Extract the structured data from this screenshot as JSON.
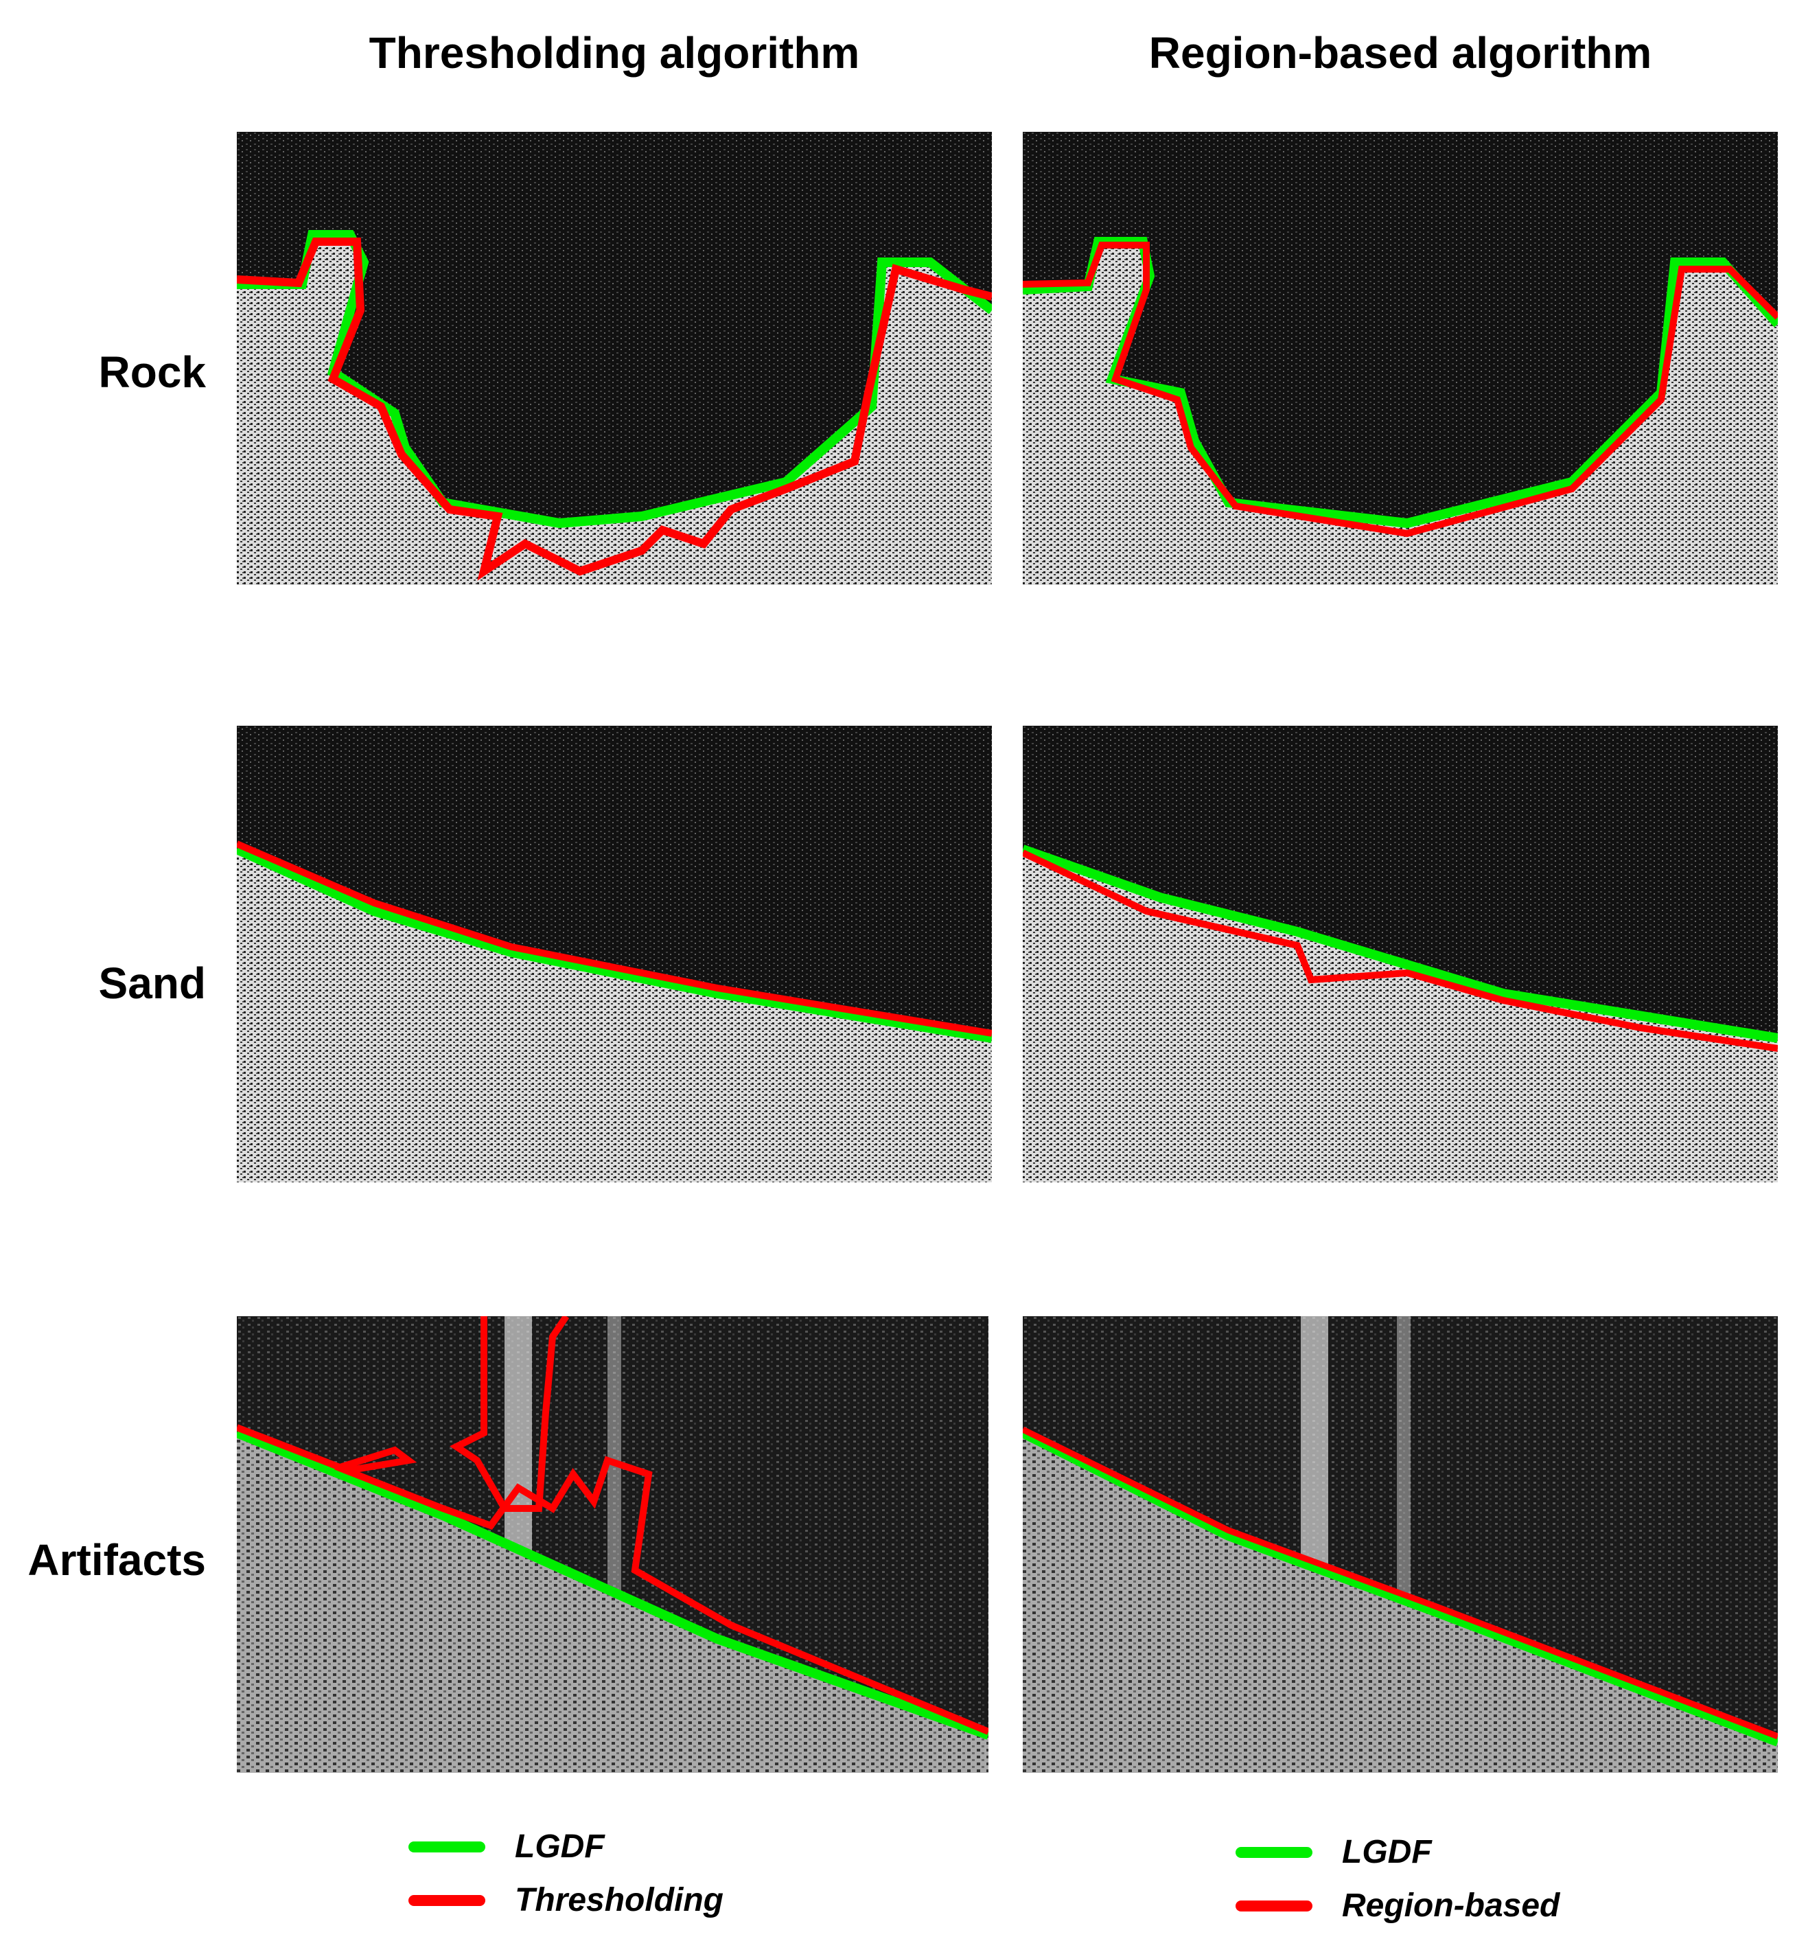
{
  "columns": [
    {
      "title": "Thresholding algorithm"
    },
    {
      "title": "Region-based algorithm"
    }
  ],
  "rows": [
    {
      "label": "Rock"
    },
    {
      "label": "Sand"
    },
    {
      "label": "Artifacts"
    }
  ],
  "legends": [
    {
      "items": [
        {
          "label": "LGDF",
          "color": "#00ee00"
        },
        {
          "label": "Thresholding",
          "color": "#ff0000"
        }
      ]
    },
    {
      "items": [
        {
          "label": "LGDF",
          "color": "#00ee00"
        },
        {
          "label": "Region-based",
          "color": "#ff0000"
        }
      ]
    }
  ],
  "colors": {
    "lgdf": "#00ee00",
    "method": "#ff0000",
    "background": "#101010"
  }
}
